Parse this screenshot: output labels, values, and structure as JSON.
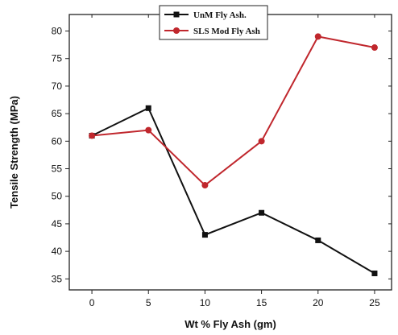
{
  "chart_data": {
    "type": "line",
    "title": "",
    "xlabel": "Wt % Fly Ash (gm)",
    "ylabel": "Tensile Strength (MPa)",
    "x": [
      0,
      5,
      10,
      15,
      20,
      25
    ],
    "xlim": [
      -2,
      26.5
    ],
    "ylim": [
      33,
      83
    ],
    "xticks": [
      0,
      5,
      10,
      15,
      20,
      25
    ],
    "yticks": [
      35,
      40,
      45,
      50,
      55,
      60,
      65,
      70,
      75,
      80
    ],
    "grid": false,
    "legend_position": "top-center",
    "series": [
      {
        "name": "UnM Fly Ash.",
        "values": [
          61,
          66,
          43,
          47,
          42,
          36
        ],
        "color": "#111111",
        "marker": "square"
      },
      {
        "name": "SLS Mod Fly Ash",
        "values": [
          61,
          62,
          52,
          60,
          79,
          77
        ],
        "color": "#c0272d",
        "marker": "circle"
      }
    ]
  }
}
